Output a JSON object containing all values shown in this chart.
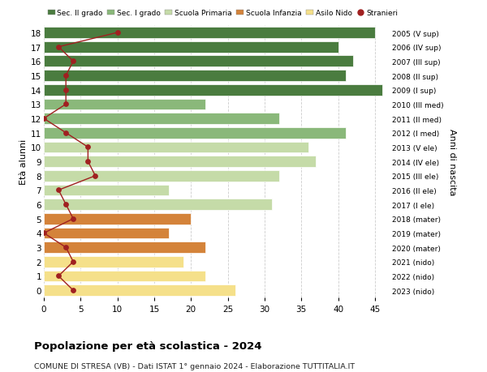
{
  "ages": [
    18,
    17,
    16,
    15,
    14,
    13,
    12,
    11,
    10,
    9,
    8,
    7,
    6,
    5,
    4,
    3,
    2,
    1,
    0
  ],
  "years": [
    "2005 (V sup)",
    "2006 (IV sup)",
    "2007 (III sup)",
    "2008 (II sup)",
    "2009 (I sup)",
    "2010 (III med)",
    "2011 (II med)",
    "2012 (I med)",
    "2013 (V ele)",
    "2014 (IV ele)",
    "2015 (III ele)",
    "2016 (II ele)",
    "2017 (I ele)",
    "2018 (mater)",
    "2019 (mater)",
    "2020 (mater)",
    "2021 (nido)",
    "2022 (nido)",
    "2023 (nido)"
  ],
  "bar_values": [
    45,
    40,
    42,
    41,
    46,
    22,
    32,
    41,
    36,
    37,
    32,
    17,
    31,
    20,
    17,
    22,
    19,
    22,
    26
  ],
  "bar_colors": [
    "#4a7c3f",
    "#4a7c3f",
    "#4a7c3f",
    "#4a7c3f",
    "#4a7c3f",
    "#8ab87a",
    "#8ab87a",
    "#8ab87a",
    "#c5dba8",
    "#c5dba8",
    "#c5dba8",
    "#c5dba8",
    "#c5dba8",
    "#d4833a",
    "#d4833a",
    "#d4833a",
    "#f5e08a",
    "#f5e08a",
    "#f5e08a"
  ],
  "stranieri_values": [
    10,
    2,
    4,
    3,
    3,
    3,
    0,
    3,
    6,
    6,
    7,
    2,
    3,
    4,
    0,
    3,
    4,
    2,
    4
  ],
  "legend_labels": [
    "Sec. II grado",
    "Sec. I grado",
    "Scuola Primaria",
    "Scuola Infanzia",
    "Asilo Nido",
    "Stranieri"
  ],
  "legend_colors": [
    "#4a7c3f",
    "#8ab87a",
    "#c5dba8",
    "#d4833a",
    "#f5e08a",
    "#a02020"
  ],
  "title": "Popolazione per età scolastica - 2024",
  "subtitle": "COMUNE DI STRESA (VB) - Dati ISTAT 1° gennaio 2024 - Elaborazione TUTTITALIA.IT",
  "ylabel_left": "Età alunni",
  "ylabel_right": "Anni di nascita",
  "xlim": [
    0,
    47
  ],
  "ylim": [
    -0.5,
    18.5
  ],
  "bg_color": "#ffffff",
  "bar_height": 0.78,
  "grid_color": "#cccccc"
}
